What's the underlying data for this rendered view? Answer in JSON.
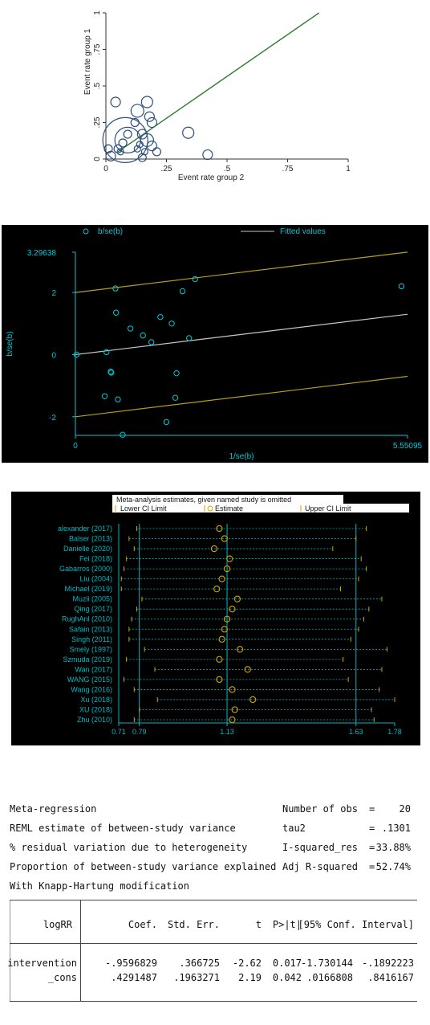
{
  "colors": {
    "p1_line": "#2e7d32",
    "p1_circle": "#2d4f7c",
    "p1_text": "#222222",
    "cyan": "#00c8d8",
    "olive": "#b8a01c",
    "gray_line": "#c8c8c8",
    "p3_line": "#00b9c4",
    "p3_circle": "#d4a400"
  },
  "chart_data": [
    {
      "type": "scatter",
      "xlabel": "Event rate group 2",
      "ylabel": "Event rate group 1",
      "xlim": [
        0,
        1
      ],
      "ylim": [
        0,
        1
      ],
      "xticks": [
        "0",
        ".25",
        ".5",
        ".75",
        "1"
      ],
      "yticks": [
        "0",
        ".25",
        ".5",
        ".75",
        "1"
      ],
      "reference_line": {
        "x": [
          0.05,
          0.88
        ],
        "y": [
          0.05,
          1.0
        ]
      },
      "points": [
        {
          "x": 0.04,
          "y": 0.39,
          "r": 6
        },
        {
          "x": 0.17,
          "y": 0.39,
          "r": 7
        },
        {
          "x": 0.13,
          "y": 0.33,
          "r": 8
        },
        {
          "x": 0.18,
          "y": 0.29,
          "r": 6
        },
        {
          "x": 0.19,
          "y": 0.25,
          "r": 6
        },
        {
          "x": 0.12,
          "y": 0.25,
          "r": 5
        },
        {
          "x": 0.34,
          "y": 0.18,
          "r": 7
        },
        {
          "x": 0.09,
          "y": 0.17,
          "r": 5
        },
        {
          "x": 0.15,
          "y": 0.17,
          "r": 6
        },
        {
          "x": 0.08,
          "y": 0.13,
          "r": 28
        },
        {
          "x": 0.09,
          "y": 0.13,
          "r": 16
        },
        {
          "x": 0.17,
          "y": 0.13,
          "r": 8
        },
        {
          "x": 0.07,
          "y": 0.11,
          "r": 5
        },
        {
          "x": 0.14,
          "y": 0.1,
          "r": 4
        },
        {
          "x": 0.19,
          "y": 0.09,
          "r": 6
        },
        {
          "x": 0.05,
          "y": 0.07,
          "r": 5
        },
        {
          "x": 0.13,
          "y": 0.07,
          "r": 4
        },
        {
          "x": 0.01,
          "y": 0.07,
          "r": 5
        },
        {
          "x": 0.16,
          "y": 0.05,
          "r": 4
        },
        {
          "x": 0.21,
          "y": 0.05,
          "r": 5
        },
        {
          "x": 0.06,
          "y": 0.05,
          "r": 4
        },
        {
          "x": 0.42,
          "y": 0.03,
          "r": 6
        },
        {
          "x": 0.02,
          "y": 0.02,
          "r": 6
        },
        {
          "x": 0.15,
          "y": 0.01,
          "r": 5
        }
      ]
    },
    {
      "type": "scatter",
      "xlabel": "1/se(b)",
      "ylabel": "b/se(b)",
      "xlim": [
        0,
        5.55095
      ],
      "ylim": [
        -2.6,
        3.29638
      ],
      "xtick_labels": [
        "0",
        "5.55095"
      ],
      "ytick_values": [
        3.29638,
        2,
        0,
        -2
      ],
      "ytick_labels": [
        "3.29638",
        "2",
        "0",
        "-2"
      ],
      "legend": [
        {
          "name": "b/se(b)",
          "marker": "circle"
        },
        {
          "name": "Fitted values",
          "marker": "line"
        }
      ],
      "fitted": {
        "x": [
          0,
          5.55095
        ],
        "y": [
          0,
          1.3
        ]
      },
      "upper_limit": {
        "x": [
          0,
          5.55095
        ],
        "y": [
          2,
          3.3
        ]
      },
      "lower_limit": {
        "x": [
          0,
          5.55095
        ],
        "y": [
          -2,
          -0.7
        ]
      },
      "points": [
        {
          "x": 0.02,
          "y": 0.0
        },
        {
          "x": 0.67,
          "y": 2.13
        },
        {
          "x": 0.68,
          "y": 1.35
        },
        {
          "x": 0.92,
          "y": 0.84
        },
        {
          "x": 1.13,
          "y": 0.62
        },
        {
          "x": 1.27,
          "y": 0.4
        },
        {
          "x": 1.42,
          "y": 1.21
        },
        {
          "x": 1.61,
          "y": 1.0
        },
        {
          "x": 1.79,
          "y": 2.04
        },
        {
          "x": 1.9,
          "y": 0.53
        },
        {
          "x": 2.0,
          "y": 2.43
        },
        {
          "x": 0.52,
          "y": 0.08
        },
        {
          "x": 0.59,
          "y": -0.55
        },
        {
          "x": 0.6,
          "y": -0.58
        },
        {
          "x": 0.49,
          "y": -1.34
        },
        {
          "x": 0.71,
          "y": -1.44
        },
        {
          "x": 0.79,
          "y": -2.58
        },
        {
          "x": 1.69,
          "y": -0.6
        },
        {
          "x": 1.67,
          "y": -1.39
        },
        {
          "x": 1.52,
          "y": -2.17
        },
        {
          "x": 5.45,
          "y": 2.2
        }
      ]
    },
    {
      "type": "forest",
      "title": "Meta-analysis estimates, given named study is omitted",
      "legend": [
        "Lower CI Limit",
        "Estimate",
        "Upper CI Limit"
      ],
      "xlim": [
        0.71,
        1.78
      ],
      "xtick_values": [
        0.71,
        0.79,
        1.13,
        1.63,
        1.78
      ],
      "xtick_labels": [
        "0.71",
        "0.79",
        "1.13",
        "1.63",
        "1.78"
      ],
      "reference_lines": [
        0.79,
        1.13,
        1.63
      ],
      "studies": [
        {
          "name": "alexander (2017)",
          "lower": 0.78,
          "est": 1.1,
          "upper": 1.67
        },
        {
          "name": "Balser (2013)",
          "lower": 0.75,
          "est": 1.12,
          "upper": 1.63
        },
        {
          "name": "Danielle (2020)",
          "lower": 0.77,
          "est": 1.08,
          "upper": 1.54
        },
        {
          "name": "Fei (2018)",
          "lower": 0.74,
          "est": 1.14,
          "upper": 1.65
        },
        {
          "name": "Gabarros (2000)",
          "lower": 0.73,
          "est": 1.13,
          "upper": 1.67
        },
        {
          "name": "Liu (2004)",
          "lower": 0.72,
          "est": 1.11,
          "upper": 1.64
        },
        {
          "name": "Michael (2019)",
          "lower": 0.72,
          "est": 1.09,
          "upper": 1.57
        },
        {
          "name": "Muzii (2005)",
          "lower": 0.8,
          "est": 1.17,
          "upper": 1.73
        },
        {
          "name": "Qing (2017)",
          "lower": 0.78,
          "est": 1.15,
          "upper": 1.68
        },
        {
          "name": "RughAnl (2010)",
          "lower": 0.76,
          "est": 1.13,
          "upper": 1.66
        },
        {
          "name": "Safain (2013)",
          "lower": 0.75,
          "est": 1.12,
          "upper": 1.64
        },
        {
          "name": "Singh (2011)",
          "lower": 0.75,
          "est": 1.11,
          "upper": 1.61
        },
        {
          "name": "Smely (1997)",
          "lower": 0.81,
          "est": 1.18,
          "upper": 1.75
        },
        {
          "name": "Szmuda (2019)",
          "lower": 0.74,
          "est": 1.1,
          "upper": 1.58
        },
        {
          "name": "Wan (2017)",
          "lower": 0.85,
          "est": 1.21,
          "upper": 1.73
        },
        {
          "name": "WANG (2015)",
          "lower": 0.73,
          "est": 1.1,
          "upper": 1.6
        },
        {
          "name": "Wang (2016)",
          "lower": 0.77,
          "est": 1.15,
          "upper": 1.72
        },
        {
          "name": "Xu (2018)",
          "lower": 0.86,
          "est": 1.23,
          "upper": 1.78
        },
        {
          "name": "XU (2018)",
          "lower": 0.79,
          "est": 1.16,
          "upper": 1.69
        },
        {
          "name": "Zhu (2010)",
          "lower": 0.77,
          "est": 1.15,
          "upper": 1.7
        }
      ]
    },
    {
      "type": "table",
      "summary": [
        {
          "label": "Meta-regression",
          "key": "Number of obs",
          "eq": "=",
          "value": "20"
        },
        {
          "label": "REML estimate of between-study variance",
          "key": "tau2",
          "eq": "=",
          "value": ".1301"
        },
        {
          "label": "% residual variation due to heterogeneity",
          "key": "I-squared_res",
          "eq": "=",
          "value": "33.88%"
        },
        {
          "label": "Proportion of between-study variance explained",
          "key": "Adj R-squared",
          "eq": "=",
          "value": "52.74%"
        },
        {
          "label": "With Knapp-Hartung modification",
          "key": "",
          "eq": "",
          "value": ""
        }
      ],
      "columns": [
        "logRR",
        "Coef.",
        "Std. Err.",
        "t",
        "P>|t|",
        "[95% Conf. Interval]"
      ],
      "rows": [
        {
          "name": "intervention",
          "coef": "-.9596829",
          "se": ".366725",
          "t": "-2.62",
          "p": "0.017",
          "lo": "-1.730144",
          "hi": "-.1892223"
        },
        {
          "name": "_cons",
          "coef": ".4291487",
          "se": ".1963271",
          "t": "2.19",
          "p": "0.042",
          "lo": ".0166808",
          "hi": ".8416167"
        }
      ]
    }
  ]
}
